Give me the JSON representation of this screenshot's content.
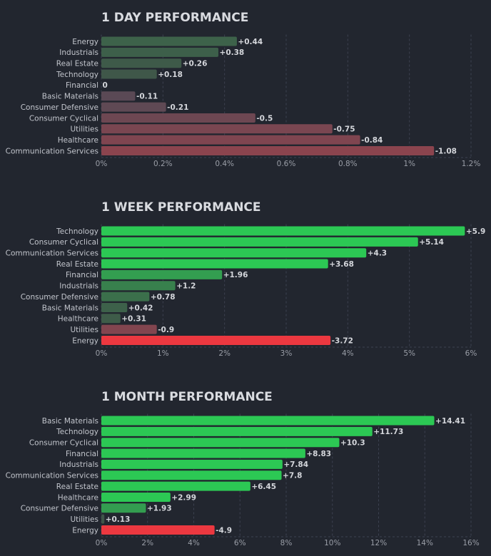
{
  "colors": {
    "background": "#22262f",
    "grid": "#3c4150",
    "title": "#d9dbe0",
    "category_label": "#c2c5cc",
    "value_label": "#d4d6db",
    "tick_label": "#9a9ea7"
  },
  "chart_data": [
    {
      "type": "bar",
      "orientation": "horizontal",
      "title": "1 DAY PERFORMANCE",
      "categories": [
        "Energy",
        "Industrials",
        "Real Estate",
        "Technology",
        "Financial",
        "Basic Materials",
        "Consumer Defensive",
        "Consumer Cyclical",
        "Utilities",
        "Healthcare",
        "Communication Services"
      ],
      "values": [
        0.44,
        0.38,
        0.26,
        0.18,
        0,
        -0.11,
        -0.21,
        -0.5,
        -0.75,
        -0.84,
        -1.08
      ],
      "value_labels": [
        "+0.44",
        "+0.38",
        "+0.26",
        "+0.18",
        "0",
        "-0.11",
        "-0.21",
        "-0.5",
        "-0.75",
        "-0.84",
        "-1.08"
      ],
      "xlim": [
        0,
        1.2
      ],
      "xticks": [
        0,
        0.2,
        0.4,
        0.6,
        0.8,
        1.0,
        1.2
      ],
      "xtick_labels": [
        "0%",
        "0.2%",
        "0.4%",
        "0.6%",
        "0.8%",
        "1%",
        "1.2%"
      ],
      "grid": true
    },
    {
      "type": "bar",
      "orientation": "horizontal",
      "title": "1 WEEK PERFORMANCE",
      "categories": [
        "Technology",
        "Consumer Cyclical",
        "Communication Services",
        "Real Estate",
        "Financial",
        "Industrials",
        "Consumer Defensive",
        "Basic Materials",
        "Healthcare",
        "Utilities",
        "Energy"
      ],
      "values": [
        5.9,
        5.14,
        4.3,
        3.68,
        1.96,
        1.2,
        0.78,
        0.42,
        0.31,
        -0.9,
        -3.72
      ],
      "value_labels": [
        "+5.9",
        "+5.14",
        "+4.3",
        "+3.68",
        "+1.96",
        "+1.2",
        "+0.78",
        "+0.42",
        "+0.31",
        "-0.9",
        "-3.72"
      ],
      "xlim": [
        0,
        6
      ],
      "xticks": [
        0,
        1,
        2,
        3,
        4,
        5,
        6
      ],
      "xtick_labels": [
        "0%",
        "1%",
        "2%",
        "3%",
        "4%",
        "5%",
        "6%"
      ],
      "grid": true
    },
    {
      "type": "bar",
      "orientation": "horizontal",
      "title": "1 MONTH PERFORMANCE",
      "categories": [
        "Basic Materials",
        "Technology",
        "Consumer Cyclical",
        "Financial",
        "Industrials",
        "Communication Services",
        "Real Estate",
        "Healthcare",
        "Consumer Defensive",
        "Utilities",
        "Energy"
      ],
      "values": [
        14.41,
        11.73,
        10.3,
        8.83,
        7.84,
        7.8,
        6.45,
        2.99,
        1.93,
        0.13,
        -4.9
      ],
      "value_labels": [
        "+14.41",
        "+11.73",
        "+10.3",
        "+8.83",
        "+7.84",
        "+7.8",
        "+6.45",
        "+2.99",
        "+1.93",
        "+0.13",
        "-4.9"
      ],
      "xlim": [
        0,
        16
      ],
      "xticks": [
        0,
        2,
        4,
        6,
        8,
        10,
        12,
        14,
        16
      ],
      "xtick_labels": [
        "0%",
        "2%",
        "4%",
        "6%",
        "8%",
        "10%",
        "12%",
        "14%",
        "16%"
      ],
      "grid": true
    }
  ]
}
